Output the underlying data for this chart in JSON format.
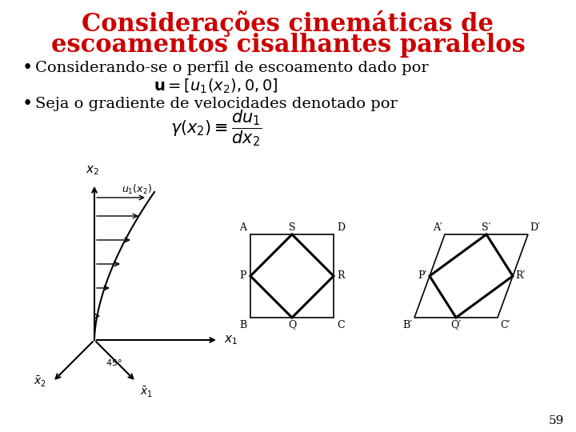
{
  "title_line1": "Considerações cinemáticas de",
  "title_line2": "escoamentos cisalhantes paralelos",
  "title_color": "#cc0000",
  "title_fontsize": 22,
  "bg_color": "#ffffff",
  "bullet1": "Considerando-se o perfil de escoamento dado por",
  "bullet2": "Seja o gradiente de velocidades denotado por",
  "page_number": "59",
  "text_fontsize": 14,
  "formula_fontsize": 13
}
